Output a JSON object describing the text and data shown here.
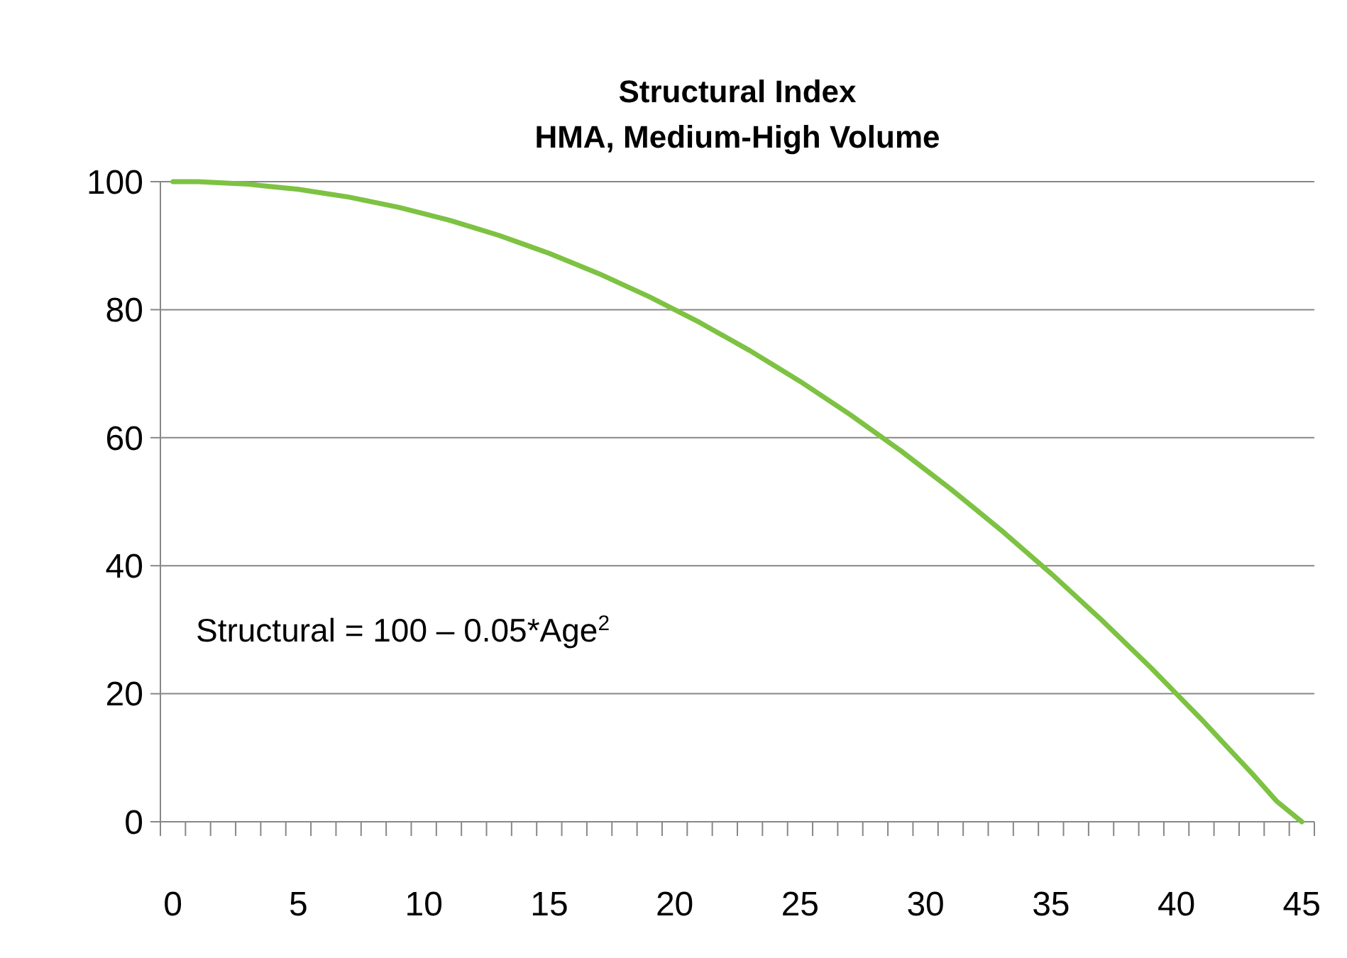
{
  "chart_data": {
    "type": "line",
    "title": "Structural Index",
    "subtitle": "HMA, Medium-High Volume",
    "categories": [
      "0",
      null,
      null,
      null,
      null,
      "5",
      null,
      null,
      null,
      null,
      "10",
      null,
      null,
      null,
      null,
      "15",
      null,
      null,
      null,
      null,
      "20",
      null,
      null,
      null,
      null,
      "25",
      null,
      null,
      null,
      null,
      "30",
      null,
      null,
      null,
      null,
      "35",
      null,
      null,
      null,
      null,
      "40",
      null,
      null,
      null,
      null,
      "45"
    ],
    "series": [
      {
        "color": "#7dc242",
        "values": [
          100,
          100,
          99.8,
          99.6,
          99.2,
          98.8,
          98.2,
          97.6,
          96.8,
          96,
          95,
          94,
          92.8,
          91.6,
          90.2,
          88.8,
          87.2,
          85.6,
          83.8,
          82,
          80,
          78,
          75.8,
          73.6,
          71.2,
          68.8,
          66.2,
          63.6,
          60.8,
          58,
          55,
          52,
          48.8,
          45.6,
          42.2,
          38.8,
          35.2,
          31.6,
          27.8,
          24,
          20,
          16,
          11.8,
          7.6,
          3.2,
          0
        ]
      }
    ],
    "ylim": [
      0,
      100
    ],
    "yticks": [
      0,
      20,
      40,
      60,
      80,
      100
    ],
    "grid": "y",
    "annotations": [
      "Structural = 100 – 0.05*Age$^{2}$"
    ]
  }
}
